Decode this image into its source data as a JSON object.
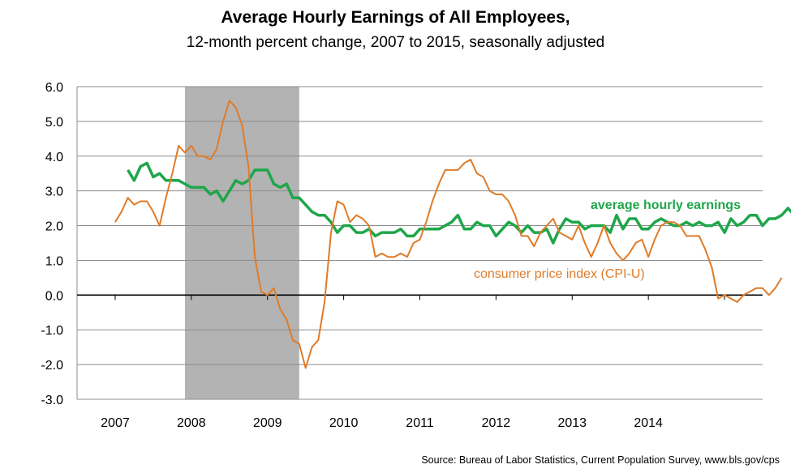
{
  "chart_data": {
    "type": "line",
    "title": "Average Hourly Earnings of All Employees,",
    "subtitle": "12-month percent change, 2007 to 2015, seasonally adjusted",
    "source": "Source: Bureau of Labor Statistics, Current Population Survey, www.bls.gov/cps",
    "ylim": [
      -3.0,
      6.0
    ],
    "yticks": [
      "6.0",
      "5.0",
      "4.0",
      "3.0",
      "2.0",
      "1.0",
      "0.0",
      "-1.0",
      "-2.0",
      "-3.0"
    ],
    "xticks": [
      "2007",
      "2008",
      "2009",
      "2010",
      "2011",
      "2012",
      "2013",
      "2014"
    ],
    "recession": {
      "start": "2007-12",
      "end": "2009-06"
    },
    "grid": true,
    "series": [
      {
        "name": "average hourly earnings",
        "color": "#1fa64a",
        "start": "2007-03",
        "values": [
          3.6,
          3.3,
          3.7,
          3.8,
          3.4,
          3.5,
          3.3,
          3.3,
          3.3,
          3.2,
          3.1,
          3.1,
          3.1,
          2.9,
          3.0,
          2.7,
          3.0,
          3.3,
          3.2,
          3.3,
          3.6,
          3.6,
          3.6,
          3.2,
          3.1,
          3.2,
          2.8,
          2.8,
          2.6,
          2.4,
          2.3,
          2.3,
          2.1,
          1.8,
          2.0,
          2.0,
          1.8,
          1.8,
          1.9,
          1.7,
          1.8,
          1.8,
          1.8,
          1.9,
          1.7,
          1.7,
          1.9,
          1.9,
          1.9,
          1.9,
          2.0,
          2.1,
          2.3,
          1.9,
          1.9,
          2.1,
          2.0,
          2.0,
          1.7,
          1.9,
          2.1,
          2.0,
          1.8,
          2.0,
          1.8,
          1.8,
          1.9,
          1.5,
          1.9,
          2.2,
          2.1,
          2.1,
          1.9,
          2.0,
          2.0,
          2.0,
          1.8,
          2.3,
          1.9,
          2.2,
          2.2,
          1.9,
          1.9,
          2.1,
          2.2,
          2.1,
          2.0,
          2.0,
          2.1,
          2.0,
          2.1,
          2.0,
          2.0,
          2.1,
          1.8,
          2.2,
          2.0,
          2.1,
          2.3,
          2.3,
          2.0,
          2.2,
          2.2,
          2.3,
          2.5,
          2.3,
          2.5
        ]
      },
      {
        "name": "consumer price index (CPI-U)",
        "color": "#e07b28",
        "start": "2007-01",
        "values": [
          2.1,
          2.4,
          2.8,
          2.6,
          2.7,
          2.7,
          2.4,
          2.0,
          2.8,
          3.5,
          4.3,
          4.1,
          4.3,
          4.0,
          4.0,
          3.9,
          4.2,
          5.0,
          5.6,
          5.4,
          4.9,
          3.7,
          1.1,
          0.1,
          0.0,
          0.2,
          -0.4,
          -0.7,
          -1.3,
          -1.4,
          -2.1,
          -1.5,
          -1.3,
          -0.2,
          1.8,
          2.7,
          2.6,
          2.1,
          2.3,
          2.2,
          2.0,
          1.1,
          1.2,
          1.1,
          1.1,
          1.2,
          1.1,
          1.5,
          1.6,
          2.1,
          2.7,
          3.2,
          3.6,
          3.6,
          3.6,
          3.8,
          3.9,
          3.5,
          3.4,
          3.0,
          2.9,
          2.9,
          2.7,
          2.3,
          1.7,
          1.7,
          1.4,
          1.8,
          2.0,
          2.2,
          1.8,
          1.7,
          1.6,
          2.0,
          1.5,
          1.1,
          1.5,
          2.0,
          1.5,
          1.2,
          1.0,
          1.2,
          1.5,
          1.6,
          1.1,
          1.6,
          2.0,
          2.1,
          2.1,
          2.0,
          1.7,
          1.7,
          1.7,
          1.3,
          0.8,
          -0.1,
          0.0,
          -0.1,
          -0.2,
          0.0,
          0.1,
          0.2,
          0.2,
          0.0,
          0.2,
          0.5
        ]
      }
    ],
    "annotations": [
      {
        "text": "average hourly earnings",
        "series": 0
      },
      {
        "text": "consumer price index (CPI-U)",
        "series": 1
      }
    ]
  }
}
